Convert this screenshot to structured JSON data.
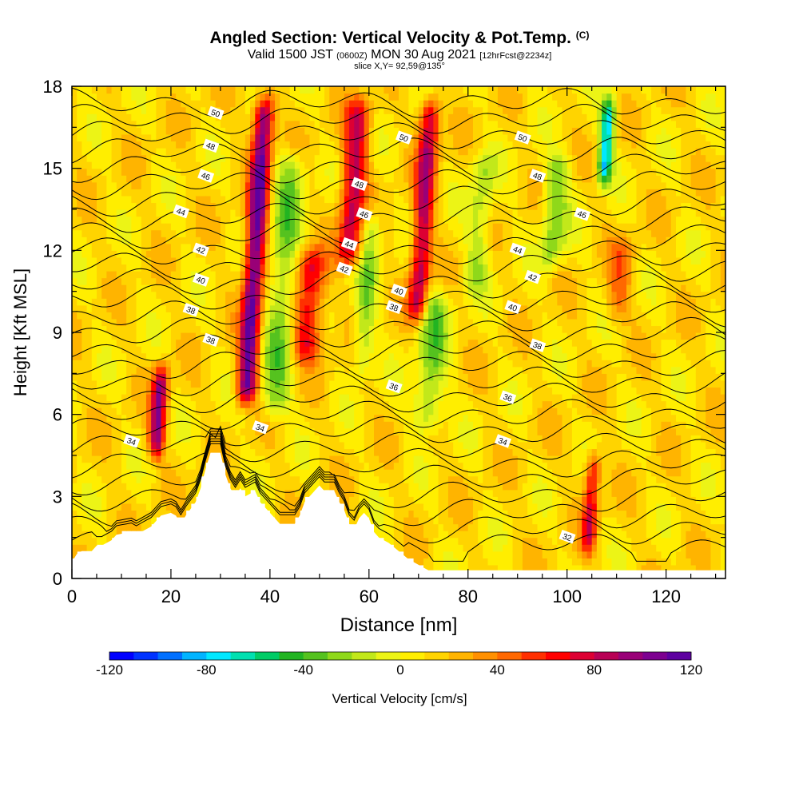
{
  "header": {
    "title_main": "Angled Section: Vertical Velocity & Pot.Temp.",
    "title_tag": "(C)",
    "valid_a": "Valid 1500 JST",
    "valid_utc": "(0600Z)",
    "valid_b": "MON 30 Aug 2021",
    "forecast": "[12hrFcst@2234z]",
    "slice": "slice X,Y= 92,59@135°"
  },
  "chart_data": {
    "type": "heatmap",
    "xlabel": "Distance [nm]",
    "ylabel": "Height [Kft MSL]",
    "xlim": [
      0,
      132
    ],
    "ylim": [
      0,
      18
    ],
    "xticks": [
      0,
      20,
      40,
      60,
      80,
      100,
      120
    ],
    "yticks": [
      0,
      3,
      6,
      9,
      12,
      15,
      18
    ],
    "colorbar": {
      "label": "Vertical Velocity [cm/s]",
      "range": [
        -120,
        120
      ],
      "step": 10,
      "tick_labels": [
        "-120",
        "-80",
        "-40",
        "0",
        "40",
        "80",
        "120"
      ],
      "colors": [
        "#0000ff",
        "#0033ff",
        "#0070ff",
        "#00b4ff",
        "#00e8ff",
        "#00e0b0",
        "#00cc66",
        "#22b422",
        "#55c21f",
        "#8fd81a",
        "#c2e81a",
        "#ecf416",
        "#ffee00",
        "#ffd400",
        "#ffb400",
        "#ff9000",
        "#ff6800",
        "#ff3000",
        "#ff0000",
        "#dd0033",
        "#b80055",
        "#990077",
        "#7d0090",
        "#5e00a0"
      ]
    },
    "velocity_bands": [
      {
        "x": 18.5,
        "half_width": 1.6,
        "h_min": 4,
        "h_max": 8.2,
        "value": 85
      },
      {
        "x": 36,
        "half_width": 2.0,
        "h_min": 6,
        "h_max": 18,
        "value": 100
      },
      {
        "x": 42,
        "half_width": 3.0,
        "h_min": 5.5,
        "h_max": 16,
        "value": -40
      },
      {
        "x": 47.5,
        "half_width": 3.0,
        "h_min": 7.5,
        "h_max": 12.5,
        "value": 60
      },
      {
        "x": 55,
        "half_width": 2.5,
        "h_min": 11,
        "h_max": 18,
        "value": 70
      },
      {
        "x": 59,
        "half_width": 2.0,
        "h_min": 7,
        "h_max": 14,
        "value": -35
      },
      {
        "x": 69.5,
        "half_width": 2.0,
        "h_min": 9,
        "h_max": 18,
        "value": 75
      },
      {
        "x": 73,
        "half_width": 3.0,
        "h_min": 5,
        "h_max": 11,
        "value": -40
      },
      {
        "x": 81,
        "half_width": 2.5,
        "h_min": 10,
        "h_max": 16,
        "value": -30
      },
      {
        "x": 96,
        "half_width": 2.5,
        "h_min": 11,
        "h_max": 16,
        "value": -40
      },
      {
        "x": 105.5,
        "half_width": 1.4,
        "h_min": 14,
        "h_max": 18,
        "value": -90
      },
      {
        "x": 107,
        "half_width": 1.5,
        "h_min": 0.5,
        "h_max": 5,
        "value": 60
      },
      {
        "x": 110,
        "half_width": 2.5,
        "h_min": 9,
        "h_max": 13,
        "value": 30
      }
    ],
    "isentropes": [
      {
        "label": "32",
        "base_height": 1.5,
        "label_x": 100
      },
      {
        "label": "34",
        "base_height": 5.0,
        "label_x": 12
      },
      {
        "label": "34",
        "base_height": 5.5,
        "label_x": 38
      },
      {
        "label": "34",
        "base_height": 5.0,
        "label_x": 87
      },
      {
        "label": "36",
        "base_height": 7.0,
        "label_x": 65
      },
      {
        "label": "36",
        "base_height": 6.6,
        "label_x": 88
      },
      {
        "label": "38",
        "base_height": 8.7,
        "label_x": 28
      },
      {
        "label": "38",
        "base_height": 8.5,
        "label_x": 94
      },
      {
        "label": "38",
        "base_height": 9.8,
        "label_x": 24
      },
      {
        "label": "38",
        "base_height": 9.9,
        "label_x": 65
      },
      {
        "label": "40",
        "base_height": 10.9,
        "label_x": 26
      },
      {
        "label": "40",
        "base_height": 10.5,
        "label_x": 66
      },
      {
        "label": "40",
        "base_height": 9.9,
        "label_x": 89
      },
      {
        "label": "42",
        "base_height": 12.0,
        "label_x": 26
      },
      {
        "label": "42",
        "base_height": 11.3,
        "label_x": 55
      },
      {
        "label": "42",
        "base_height": 11.0,
        "label_x": 93
      },
      {
        "label": "44",
        "base_height": 13.4,
        "label_x": 22
      },
      {
        "label": "44",
        "base_height": 12.2,
        "label_x": 56
      },
      {
        "label": "44",
        "base_height": 12.0,
        "label_x": 90
      },
      {
        "label": "46",
        "base_height": 14.7,
        "label_x": 27
      },
      {
        "label": "46",
        "base_height": 13.3,
        "label_x": 59
      },
      {
        "label": "46",
        "base_height": 13.3,
        "label_x": 103
      },
      {
        "label": "48",
        "base_height": 15.8,
        "label_x": 28
      },
      {
        "label": "48",
        "base_height": 14.4,
        "label_x": 58
      },
      {
        "label": "48",
        "base_height": 14.7,
        "label_x": 94
      },
      {
        "label": "50",
        "base_height": 17.0,
        "label_x": 29
      },
      {
        "label": "50",
        "base_height": 16.1,
        "label_x": 67
      },
      {
        "label": "50",
        "base_height": 16.1,
        "label_x": 91
      }
    ],
    "terrain": [
      [
        0,
        0.6
      ],
      [
        1,
        0.9
      ],
      [
        2,
        1.0
      ],
      [
        4,
        1.0
      ],
      [
        5,
        1.2
      ],
      [
        6,
        1.2
      ],
      [
        8,
        1.4
      ],
      [
        9,
        1.6
      ],
      [
        12,
        1.7
      ],
      [
        13,
        1.6
      ],
      [
        14,
        1.7
      ],
      [
        16,
        1.9
      ],
      [
        18,
        2.3
      ],
      [
        20,
        2.4
      ],
      [
        21,
        2.3
      ],
      [
        22,
        2.0
      ],
      [
        23,
        2.3
      ],
      [
        25,
        2.8
      ],
      [
        26,
        3.3
      ],
      [
        27,
        4.0
      ],
      [
        28,
        4.6
      ],
      [
        30,
        4.6
      ],
      [
        31,
        3.8
      ],
      [
        32,
        3.3
      ],
      [
        33,
        3.0
      ],
      [
        34,
        3.3
      ],
      [
        35,
        3.0
      ],
      [
        37,
        3.2
      ],
      [
        38,
        2.8
      ],
      [
        40,
        2.4
      ],
      [
        42,
        2.0
      ],
      [
        45,
        2.0
      ],
      [
        46,
        2.3
      ],
      [
        47,
        2.8
      ],
      [
        48,
        3.0
      ],
      [
        50,
        3.4
      ],
      [
        51,
        3.2
      ],
      [
        53,
        3.2
      ],
      [
        54,
        2.8
      ],
      [
        55,
        2.5
      ],
      [
        56,
        2.0
      ],
      [
        57,
        1.8
      ],
      [
        58,
        2.2
      ],
      [
        59,
        2.4
      ],
      [
        60,
        2.2
      ],
      [
        61,
        1.7
      ],
      [
        62,
        1.5
      ],
      [
        64,
        1.3
      ],
      [
        66,
        1.0
      ],
      [
        68,
        0.7
      ],
      [
        70,
        0.5
      ],
      [
        72,
        0.3
      ],
      [
        132,
        0.3
      ]
    ]
  }
}
